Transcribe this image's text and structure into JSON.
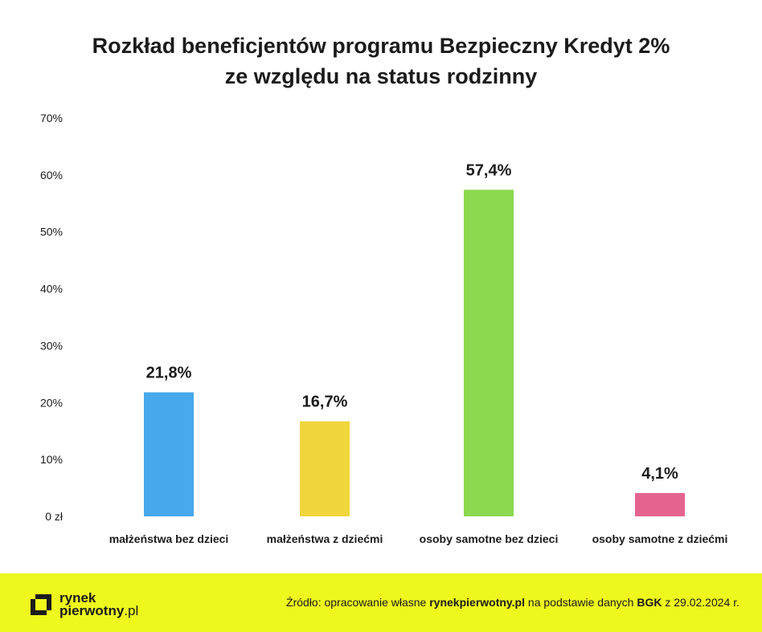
{
  "title_lines": [
    "Rozkład beneficjentów programu Bezpieczny Kredyt 2%",
    "ze względu na status rodzinny"
  ],
  "chart_data": {
    "type": "bar",
    "title": "Rozkład beneficjentów programu Bezpieczny Kredyt 2% ze względu na status rodzinny",
    "categories": [
      "małżeństwa bez dzieci",
      "małżeństwa z dziećmi",
      "osoby samotne bez dzieci",
      "osoby samotne z dziećmi"
    ],
    "values": [
      21.8,
      16.7,
      57.4,
      4.1
    ],
    "value_labels": [
      "21,8%",
      "16,7%",
      "57,4%",
      "4,1%"
    ],
    "colors": [
      "#47a8ec",
      "#f0d53c",
      "#8ad94e",
      "#e5648f"
    ],
    "ylim": [
      0,
      70
    ],
    "yticks": [
      0,
      10,
      20,
      30,
      40,
      50,
      60,
      70
    ],
    "ytick_labels": [
      "0 zł",
      "10%",
      "20%",
      "30%",
      "40%",
      "50%",
      "60%",
      "70%"
    ],
    "grid": false,
    "legend": "none",
    "xlabel": "",
    "ylabel": ""
  },
  "footer": {
    "logo_line1": "rynek",
    "logo_line2_bold": "pierwotny",
    "logo_line2_light": ".pl",
    "source_prefix": "Źródło: opracowanie własne ",
    "source_site": "rynekpierwotny.pl",
    "source_middle": " na podstawie danych ",
    "source_org": "BGK",
    "source_suffix": " z 29.02.2024 r."
  }
}
